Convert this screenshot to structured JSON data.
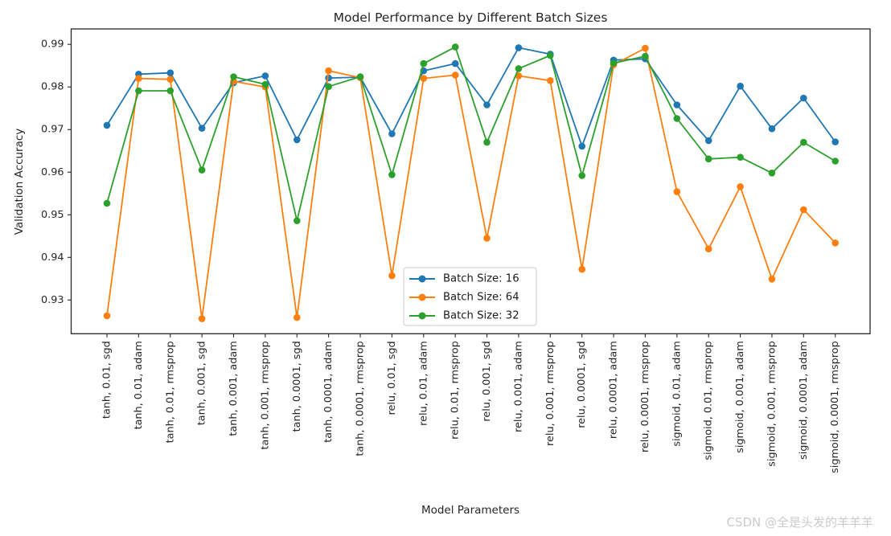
{
  "chart_data": {
    "type": "line",
    "title": "Model Performance by Different Batch Sizes",
    "xlabel": "Model Parameters",
    "ylabel": "Validation Accuracy",
    "grid": false,
    "legend_position": "lower center-left inside plot",
    "marker": "circle",
    "yticks": [
      0.93,
      0.94,
      0.95,
      0.96,
      0.97,
      0.98,
      0.99
    ],
    "ylim": [
      0.9221,
      0.9936
    ],
    "categories": [
      "tanh, 0.01, sgd",
      "tanh, 0.01, adam",
      "tanh, 0.01, rmsprop",
      "tanh, 0.001, sgd",
      "tanh, 0.001, adam",
      "tanh, 0.001, rmsprop",
      "tanh, 0.0001, sgd",
      "tanh, 0.0001, adam",
      "tanh, 0.0001, rmsprop",
      "relu, 0.01, sgd",
      "relu, 0.01, adam",
      "relu, 0.01, rmsprop",
      "relu, 0.001, sgd",
      "relu, 0.001, adam",
      "relu, 0.001, rmsprop",
      "relu, 0.0001, sgd",
      "relu, 0.0001, adam",
      "relu, 0.0001, rmsprop",
      "sigmoid, 0.01, adam",
      "sigmoid, 0.01, rmsprop",
      "sigmoid, 0.001, adam",
      "sigmoid, 0.001, rmsprop",
      "sigmoid, 0.0001, adam",
      "sigmoid, 0.0001, rmsprop"
    ],
    "series": [
      {
        "name": "Batch Size: 16",
        "color": "#1f77b4",
        "values": [
          0.971,
          0.983,
          0.9833,
          0.9703,
          0.981,
          0.9826,
          0.9676,
          0.9821,
          0.9823,
          0.969,
          0.9838,
          0.9855,
          0.9758,
          0.9892,
          0.9877,
          0.9661,
          0.9863,
          0.9866,
          0.9758,
          0.9674,
          0.9802,
          0.9702,
          0.9774,
          0.9671
        ]
      },
      {
        "name": "Batch Size: 64",
        "color": "#ff7f0e",
        "values": [
          0.9263,
          0.982,
          0.9818,
          0.9256,
          0.9813,
          0.98,
          0.9259,
          0.9838,
          0.9822,
          0.9357,
          0.982,
          0.9828,
          0.9445,
          0.9826,
          0.9815,
          0.9372,
          0.9852,
          0.9891,
          0.9554,
          0.942,
          0.9566,
          0.9349,
          0.9512,
          0.9434
        ]
      },
      {
        "name": "Batch Size: 32",
        "color": "#2ca02c",
        "values": [
          0.9527,
          0.9791,
          0.9791,
          0.9605,
          0.9824,
          0.9806,
          0.9486,
          0.9801,
          0.9824,
          0.9594,
          0.9855,
          0.9894,
          0.967,
          0.9843,
          0.9874,
          0.9592,
          0.9856,
          0.9872,
          0.9726,
          0.9631,
          0.9635,
          0.9598,
          0.967,
          0.9626
        ]
      }
    ]
  },
  "watermark": {
    "text": "CSDN @全是头发的羊羊羊",
    "color": "#cbcbcb"
  }
}
